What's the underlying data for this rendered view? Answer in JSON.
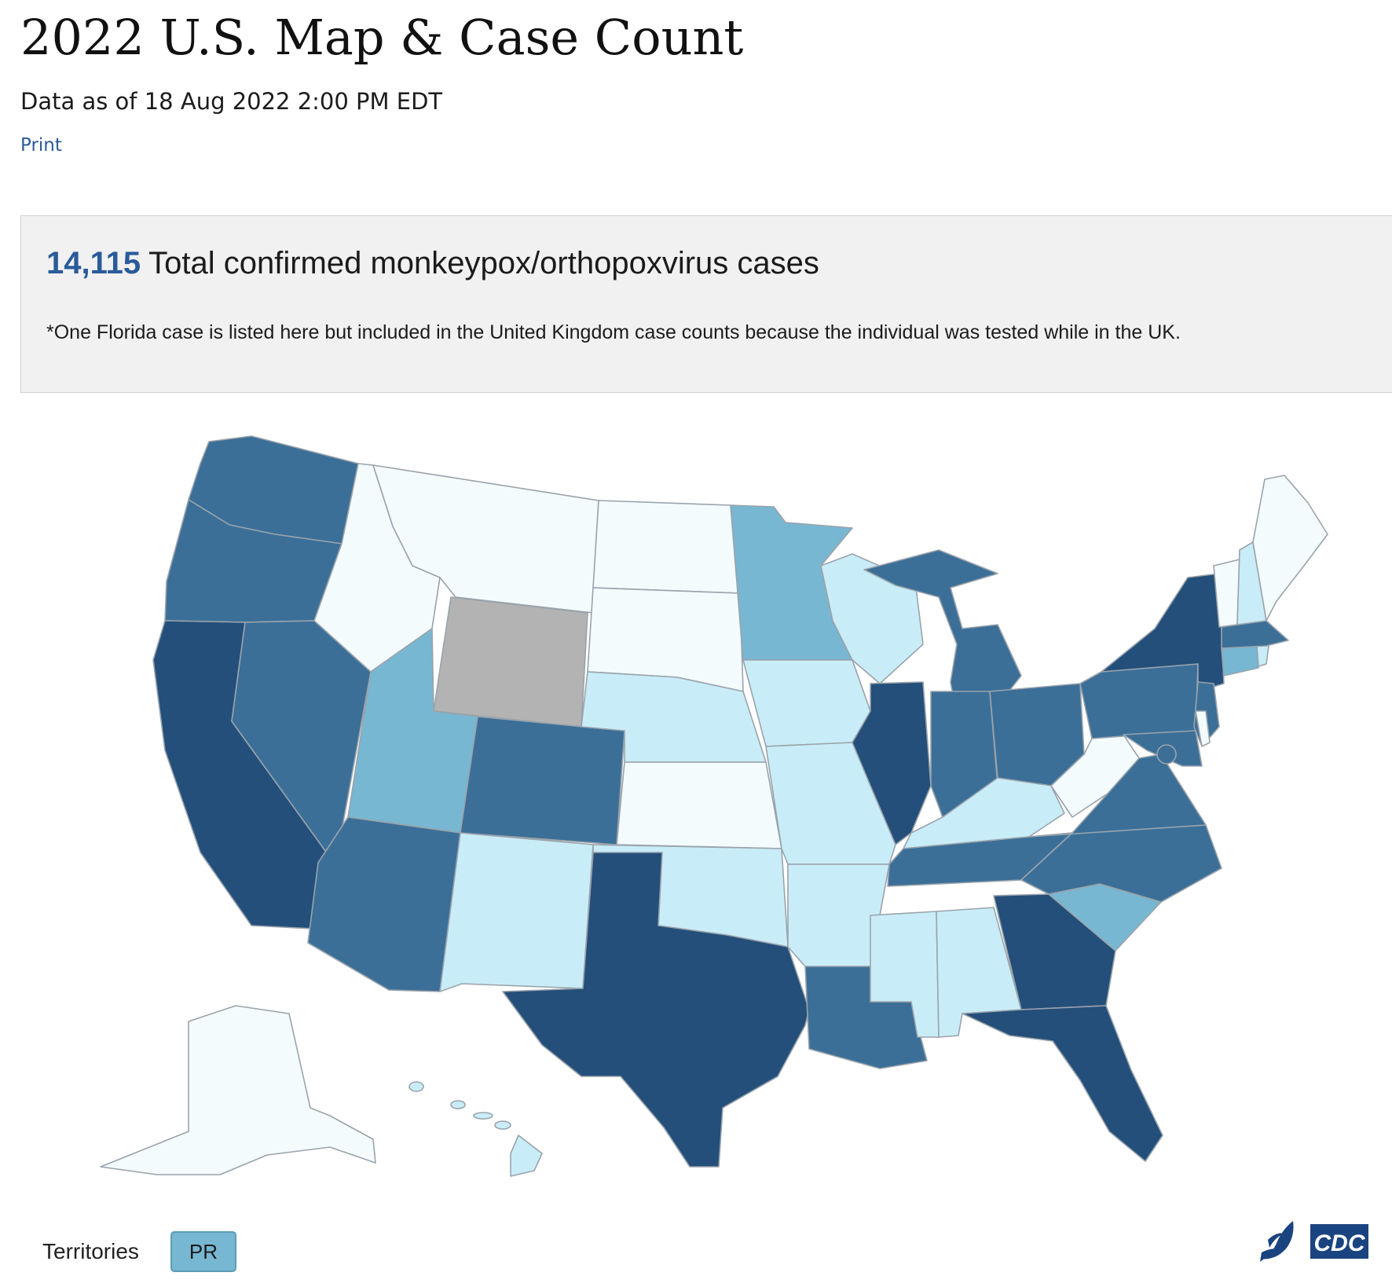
{
  "header": {
    "title": "2022 U.S. Map & Case Count",
    "data_as_of": "Data as of 18 Aug 2022 2:00 PM EDT",
    "print_label": "Print"
  },
  "summary": {
    "total_count": "14,115",
    "total_label": "Total confirmed monkeypox/orthopoxvirus cases",
    "note": "*One Florida case is listed here but included in the United Kingdom case counts because the individual was tested while in the UK."
  },
  "colors": {
    "level_0": "#f3fbfd",
    "level_1": "#c9edf8",
    "level_2": "#77b7d2",
    "level_3": "#3b6f98",
    "level_4": "#234f7a",
    "no_data": "#b3b3b3",
    "state_border": "#9aa3ab"
  },
  "map": {
    "states": [
      {
        "abbr": "WA",
        "level": 3
      },
      {
        "abbr": "OR",
        "level": 3
      },
      {
        "abbr": "CA",
        "level": 4
      },
      {
        "abbr": "NV",
        "level": 3
      },
      {
        "abbr": "ID",
        "level": 0
      },
      {
        "abbr": "MT",
        "level": 0
      },
      {
        "abbr": "WY",
        "level": "no_data"
      },
      {
        "abbr": "UT",
        "level": 2
      },
      {
        "abbr": "AZ",
        "level": 3
      },
      {
        "abbr": "CO",
        "level": 3
      },
      {
        "abbr": "NM",
        "level": 1
      },
      {
        "abbr": "ND",
        "level": 0
      },
      {
        "abbr": "SD",
        "level": 0
      },
      {
        "abbr": "NE",
        "level": 1
      },
      {
        "abbr": "KS",
        "level": 0
      },
      {
        "abbr": "OK",
        "level": 1
      },
      {
        "abbr": "TX",
        "level": 4
      },
      {
        "abbr": "MN",
        "level": 2
      },
      {
        "abbr": "IA",
        "level": 1
      },
      {
        "abbr": "MO",
        "level": 1
      },
      {
        "abbr": "AR",
        "level": 1
      },
      {
        "abbr": "LA",
        "level": 3
      },
      {
        "abbr": "WI",
        "level": 1
      },
      {
        "abbr": "IL",
        "level": 4
      },
      {
        "abbr": "MI",
        "level": 3
      },
      {
        "abbr": "IN",
        "level": 3
      },
      {
        "abbr": "OH",
        "level": 3
      },
      {
        "abbr": "KY",
        "level": 1
      },
      {
        "abbr": "TN",
        "level": 3
      },
      {
        "abbr": "MS",
        "level": 1
      },
      {
        "abbr": "AL",
        "level": 1
      },
      {
        "abbr": "GA",
        "level": 4
      },
      {
        "abbr": "FL",
        "level": 4
      },
      {
        "abbr": "SC",
        "level": 2
      },
      {
        "abbr": "NC",
        "level": 3
      },
      {
        "abbr": "VA",
        "level": 3
      },
      {
        "abbr": "WV",
        "level": 0
      },
      {
        "abbr": "PA",
        "level": 3
      },
      {
        "abbr": "NY",
        "level": 4
      },
      {
        "abbr": "NJ",
        "level": 3
      },
      {
        "abbr": "MD",
        "level": 3
      },
      {
        "abbr": "DE",
        "level": 0
      },
      {
        "abbr": "DC",
        "level": 3
      },
      {
        "abbr": "CT",
        "level": 2
      },
      {
        "abbr": "RI",
        "level": 1
      },
      {
        "abbr": "MA",
        "level": 3
      },
      {
        "abbr": "VT",
        "level": 0
      },
      {
        "abbr": "NH",
        "level": 1
      },
      {
        "abbr": "ME",
        "level": 0
      },
      {
        "abbr": "AK",
        "level": 0
      },
      {
        "abbr": "HI",
        "level": 1
      }
    ]
  },
  "territories": {
    "label": "Territories",
    "items": [
      {
        "abbr": "PR",
        "level": 2
      }
    ]
  },
  "logo": {
    "text": "CDC"
  }
}
